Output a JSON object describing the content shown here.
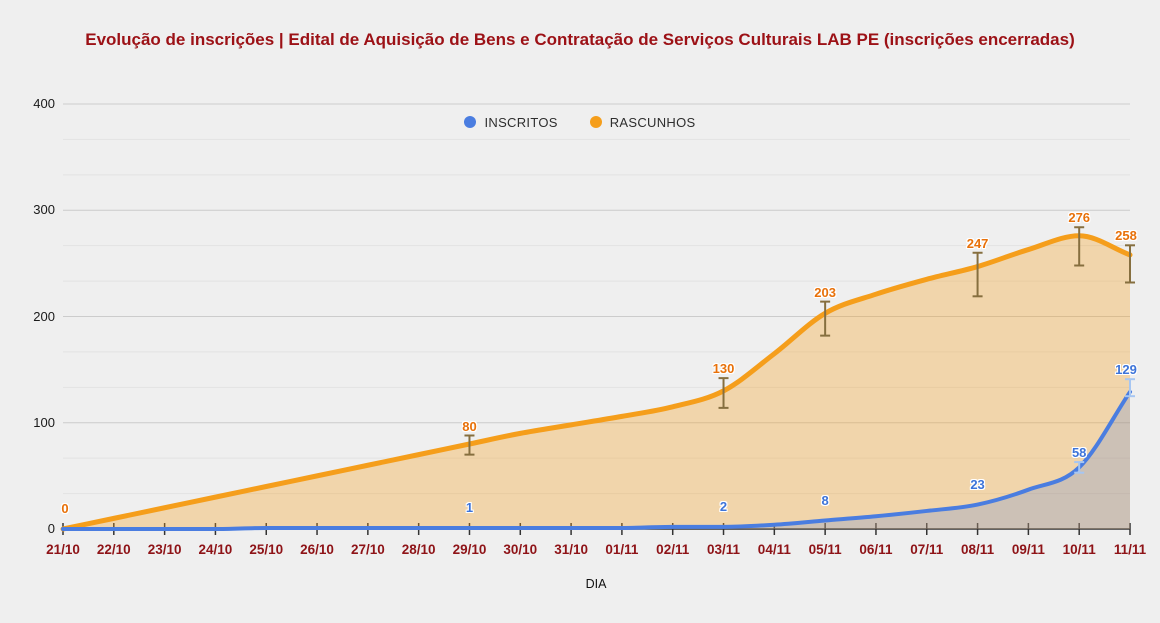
{
  "page": {
    "background": "#EFEFEF"
  },
  "chart_data": {
    "type": "area",
    "title": "Evolução de inscrições | Edital de Aquisição de Bens e Contratação de Serviços Culturais LAB PE (inscrições encerradas)",
    "title_color": "#9C1116",
    "xlabel": "DIA",
    "ylim": [
      0,
      400
    ],
    "y_major_ticks": [
      0,
      100,
      200,
      300,
      400
    ],
    "y_minor_divisions_per_major": 3,
    "grid": "horizontal-major-and-minor",
    "legend_position": "top-center",
    "curve": "smooth",
    "background_color": "#EFEFEF",
    "axis_colors": {
      "x_tick_label": "#8E1317",
      "y_tick_label": "#1A1A1A",
      "baseline": "#333333",
      "grid_major": "#CCCCCC",
      "grid_minor": "#E2E2E2"
    },
    "categories": [
      "21/10",
      "22/10",
      "23/10",
      "24/10",
      "25/10",
      "26/10",
      "27/10",
      "28/10",
      "29/10",
      "30/10",
      "31/10",
      "01/11",
      "02/11",
      "03/11",
      "04/11",
      "05/11",
      "06/11",
      "07/11",
      "08/11",
      "09/11",
      "10/11",
      "11/11"
    ],
    "series": [
      {
        "name": "INSCRITOS",
        "color": "#4A7DE0",
        "label_color": "#3D74D9",
        "interval_color": "#A6C6F2",
        "area_opacity": 0.22,
        "line_width": 4,
        "values": [
          0,
          0,
          0,
          0,
          1,
          1,
          1,
          1,
          1,
          1,
          1,
          1,
          2,
          2,
          4,
          8,
          12,
          17,
          23,
          37,
          58,
          129
        ],
        "annotations": [
          {
            "x": "29/10",
            "label": "1"
          },
          {
            "x": "03/11",
            "label": "2"
          },
          {
            "x": "05/11",
            "label": "8"
          },
          {
            "x": "08/11",
            "label": "23"
          },
          {
            "x": "10/11",
            "label": "58"
          },
          {
            "x": "11/11",
            "label": "129"
          }
        ],
        "intervals": [
          {
            "x": "10/11",
            "low": 53,
            "high": 63
          },
          {
            "x": "11/11",
            "low": 125,
            "high": 141
          }
        ]
      },
      {
        "name": "RASCUNHOS",
        "color": "#F59E1B",
        "label_color": "#E8710A",
        "interval_color": "#866F3F",
        "area_opacity": 0.32,
        "line_width": 5,
        "values": [
          0,
          10,
          20,
          30,
          40,
          50,
          60,
          70,
          80,
          90,
          98,
          106,
          115,
          130,
          165,
          203,
          221,
          235,
          247,
          263,
          276,
          258
        ],
        "annotations": [
          {
            "x": "21/10",
            "label": "0"
          },
          {
            "x": "29/10",
            "label": "80"
          },
          {
            "x": "03/11",
            "label": "130"
          },
          {
            "x": "05/11",
            "label": "203"
          },
          {
            "x": "08/11",
            "label": "247"
          },
          {
            "x": "10/11",
            "label": "276"
          },
          {
            "x": "11/11",
            "label": "258"
          }
        ],
        "intervals": [
          {
            "x": "29/10",
            "low": 70,
            "high": 88
          },
          {
            "x": "03/11",
            "low": 114,
            "high": 142
          },
          {
            "x": "05/11",
            "low": 182,
            "high": 214
          },
          {
            "x": "08/11",
            "low": 219,
            "high": 260
          },
          {
            "x": "10/11",
            "low": 248,
            "high": 284
          },
          {
            "x": "11/11",
            "low": 232,
            "high": 267
          }
        ]
      }
    ]
  }
}
